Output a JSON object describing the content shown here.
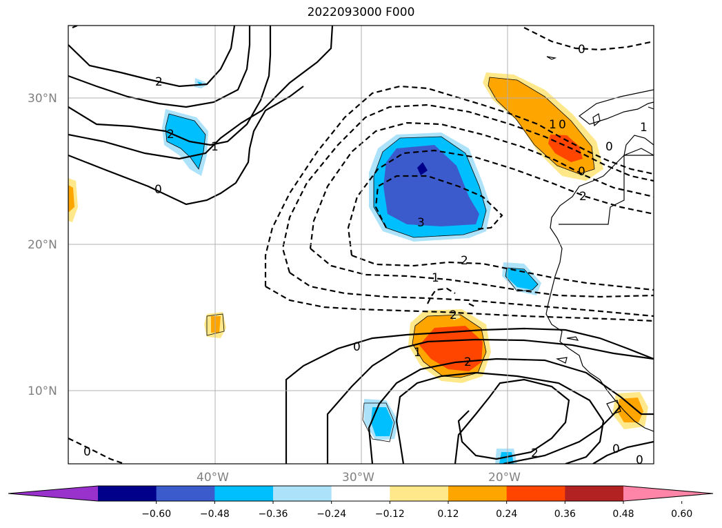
{
  "title": "2022093000 F000",
  "map": {
    "lat_labels": [
      "30°N",
      "20°N",
      "10°N"
    ],
    "lon_labels": [
      "40°W",
      "30°W",
      "20°W"
    ],
    "contour_labels": [
      "0",
      "2",
      "1",
      "0",
      "2",
      "1",
      "0",
      "3",
      "2",
      "1",
      "0",
      "1",
      "2",
      "2",
      "0",
      "0",
      "0",
      "0",
      "0",
      "1",
      "2",
      "2"
    ]
  },
  "colorbar": {
    "tick_labels": [
      "−0.60",
      "−0.48",
      "−0.36",
      "−0.24",
      "−0.12",
      "0.12",
      "0.24",
      "0.36",
      "0.48",
      "0.60"
    ],
    "colors": [
      "#9932cc",
      "#00008b",
      "#3b5bcc",
      "#00bfff",
      "#ade3fa",
      "#ffffff",
      "#ffe88a",
      "#ffa500",
      "#ff4500",
      "#b22222",
      "#ff85a8"
    ]
  }
}
